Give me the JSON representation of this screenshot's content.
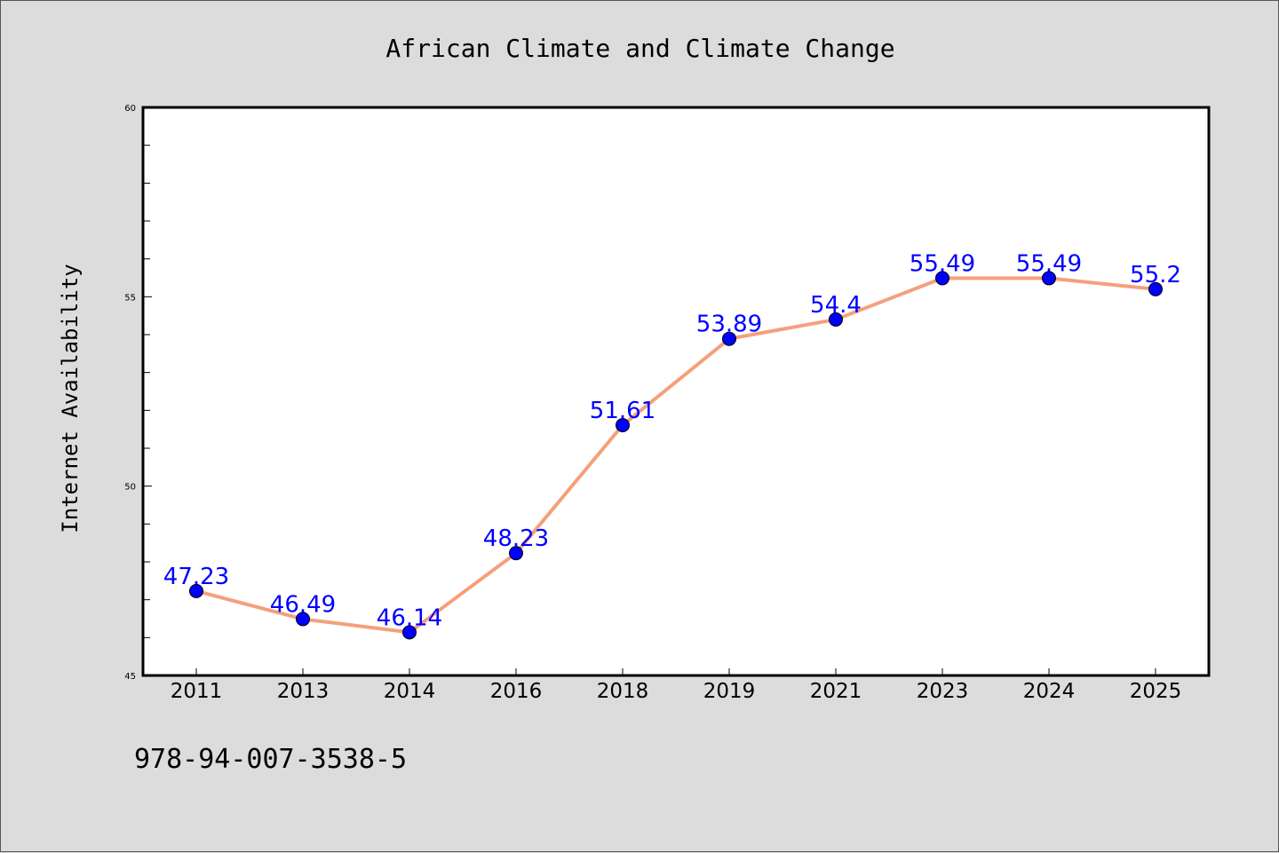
{
  "chart_data": {
    "type": "line",
    "title": "African Climate and Climate Change",
    "xlabel": "",
    "ylabel": "Internet Availability",
    "categories": [
      "2011",
      "2013",
      "2014",
      "2016",
      "2018",
      "2019",
      "2021",
      "2023",
      "2024",
      "2025"
    ],
    "series": [
      {
        "values": [
          47.23,
          46.49,
          46.14,
          48.23,
          51.61,
          53.89,
          54.4,
          55.49,
          55.49,
          55.2
        ],
        "labels": [
          "47.23",
          "46.49",
          "46.14",
          "48.23",
          "51.61",
          "53.89",
          "54.4",
          "55.49",
          "55.49",
          "55.2"
        ],
        "line_color": "#f4a07c",
        "marker_color": "#0000ff"
      }
    ],
    "ylim": [
      45,
      60
    ],
    "yticks": [
      45,
      50,
      55,
      60
    ],
    "ytick_labels": [
      "45",
      "50",
      "55",
      "60"
    ],
    "grid": false,
    "label_color": "#0000ff"
  },
  "footer_text": "978-94-007-3538-5"
}
